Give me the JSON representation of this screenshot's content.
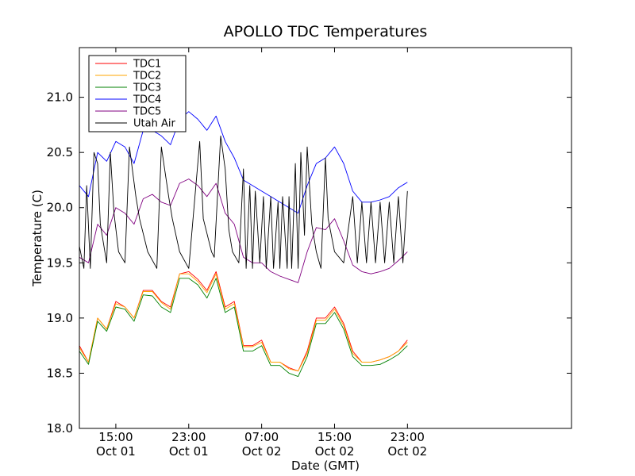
{
  "chart_data": {
    "type": "line",
    "title": "APOLLO TDC Temperatures",
    "xlabel": "Date (GMT)",
    "ylabel": "Temperature (C)",
    "ylim": [
      18.0,
      21.45
    ],
    "xlim": [
      0,
      54
    ],
    "x_unit": "hours since Oct 01 11:00 GMT",
    "yticks": [
      18.0,
      18.5,
      19.0,
      19.5,
      20.0,
      20.5,
      21.0
    ],
    "ytick_labels": [
      "18.0",
      "18.5",
      "19.0",
      "19.5",
      "20.0",
      "20.5",
      "21.0"
    ],
    "xticks": [
      {
        "x": 4,
        "time": "15:00",
        "date": "Oct 01"
      },
      {
        "x": 12,
        "time": "23:00",
        "date": "Oct 01"
      },
      {
        "x": 20,
        "time": "07:00",
        "date": "Oct 02"
      },
      {
        "x": 28,
        "time": "15:00",
        "date": "Oct 02"
      },
      {
        "x": 36,
        "time": "23:00",
        "date": "Oct 02"
      }
    ],
    "legend_position": "top-left",
    "series": [
      {
        "name": "TDC1",
        "color": "#ff0000",
        "x": [
          0,
          1,
          2,
          3,
          4,
          5,
          6,
          7,
          8,
          9,
          10,
          11,
          12,
          13,
          14,
          15,
          16,
          17,
          18,
          19,
          20,
          21,
          22,
          23,
          24,
          25,
          26,
          27,
          28,
          29,
          30,
          31,
          32,
          33,
          34,
          35,
          36
        ],
        "y": [
          18.75,
          18.6,
          19.0,
          18.9,
          19.15,
          19.1,
          19.0,
          19.25,
          19.25,
          19.15,
          19.1,
          19.4,
          19.42,
          19.35,
          19.25,
          19.42,
          19.1,
          19.15,
          18.75,
          18.75,
          18.8,
          18.6,
          18.6,
          18.55,
          18.52,
          18.7,
          19.0,
          19.0,
          19.1,
          18.95,
          18.7,
          18.6,
          18.6,
          18.62,
          18.65,
          18.7,
          18.8
        ]
      },
      {
        "name": "TDC2",
        "color": "#ffa500",
        "x": [
          0,
          1,
          2,
          3,
          4,
          5,
          6,
          7,
          8,
          9,
          10,
          11,
          12,
          13,
          14,
          15,
          16,
          17,
          18,
          19,
          20,
          21,
          22,
          23,
          24,
          25,
          26,
          27,
          28,
          29,
          30,
          31,
          32,
          33,
          34,
          35,
          36
        ],
        "y": [
          18.73,
          18.6,
          19.0,
          18.9,
          19.13,
          19.1,
          19.0,
          19.24,
          19.24,
          19.14,
          19.08,
          19.4,
          19.4,
          19.33,
          19.23,
          19.4,
          19.08,
          19.13,
          18.74,
          18.74,
          18.78,
          18.6,
          18.6,
          18.54,
          18.52,
          18.68,
          18.98,
          18.98,
          19.08,
          18.93,
          18.68,
          18.6,
          18.6,
          18.62,
          18.65,
          18.7,
          18.78
        ]
      },
      {
        "name": "TDC3",
        "color": "#008000",
        "x": [
          0,
          1,
          2,
          3,
          4,
          5,
          6,
          7,
          8,
          9,
          10,
          11,
          12,
          13,
          14,
          15,
          16,
          17,
          18,
          19,
          20,
          21,
          22,
          23,
          24,
          25,
          26,
          27,
          28,
          29,
          30,
          31,
          32,
          33,
          34,
          35,
          36
        ],
        "y": [
          18.7,
          18.58,
          18.97,
          18.88,
          19.1,
          19.08,
          18.97,
          19.21,
          19.2,
          19.1,
          19.05,
          19.36,
          19.36,
          19.3,
          19.18,
          19.36,
          19.05,
          19.1,
          18.7,
          18.7,
          18.75,
          18.57,
          18.57,
          18.5,
          18.47,
          18.65,
          18.95,
          18.95,
          19.05,
          18.9,
          18.65,
          18.57,
          18.57,
          18.58,
          18.62,
          18.67,
          18.75
        ]
      },
      {
        "name": "TDC4",
        "color": "#0000ff",
        "x": [
          0,
          1,
          2,
          3,
          4,
          5,
          6,
          7,
          8,
          9,
          10,
          11,
          12,
          13,
          14,
          15,
          16,
          17,
          18,
          19,
          20,
          21,
          22,
          23,
          24,
          25,
          26,
          27,
          28,
          29,
          30,
          31,
          32,
          33,
          34,
          35,
          36
        ],
        "y": [
          20.2,
          20.1,
          20.5,
          20.42,
          20.6,
          20.55,
          20.4,
          20.7,
          20.7,
          20.65,
          20.57,
          20.8,
          20.87,
          20.8,
          20.7,
          20.83,
          20.6,
          20.45,
          20.25,
          20.2,
          20.15,
          20.1,
          20.05,
          20.0,
          19.95,
          20.2,
          20.4,
          20.45,
          20.55,
          20.4,
          20.15,
          20.05,
          20.05,
          20.07,
          20.1,
          20.18,
          20.23
        ]
      },
      {
        "name": "TDC5",
        "color": "#800080",
        "x": [
          0,
          1,
          2,
          3,
          4,
          5,
          6,
          7,
          8,
          9,
          10,
          11,
          12,
          13,
          14,
          15,
          16,
          17,
          18,
          19,
          20,
          21,
          22,
          23,
          24,
          25,
          26,
          27,
          28,
          29,
          30,
          31,
          32,
          33,
          34,
          35,
          36
        ],
        "y": [
          19.55,
          19.5,
          19.85,
          19.75,
          20.0,
          19.95,
          19.85,
          20.08,
          20.12,
          20.05,
          20.02,
          20.22,
          20.26,
          20.2,
          20.1,
          20.22,
          19.95,
          19.85,
          19.55,
          19.5,
          19.5,
          19.42,
          19.38,
          19.35,
          19.32,
          19.6,
          19.82,
          19.8,
          19.9,
          19.7,
          19.48,
          19.42,
          19.4,
          19.42,
          19.45,
          19.52,
          19.6
        ]
      },
      {
        "name": "Utah Air",
        "color": "#000000",
        "x": [
          0,
          0.5,
          0.8,
          1.2,
          1.6,
          2.0,
          2.3,
          3.0,
          3.4,
          3.8,
          4.3,
          5.0,
          5.5,
          6.2,
          6.6,
          7.5,
          8.5,
          9.0,
          9.8,
          10.2,
          11.0,
          12.0,
          13.2,
          13.6,
          14.5,
          14.8,
          15.5,
          16.0,
          16.4,
          16.8,
          17.5,
          18.0,
          18.3,
          18.7,
          19.0,
          19.3,
          19.8,
          20.2,
          20.5,
          21.0,
          21.3,
          21.8,
          22.0,
          22.3,
          22.8,
          23.0,
          23.3,
          23.7,
          24.0,
          24.3,
          24.7,
          25.0,
          25.5,
          26.0,
          26.5,
          27.0,
          27.3,
          28.0,
          29.0,
          30.0,
          30.5,
          31.0,
          31.5,
          32.0,
          32.5,
          33.0,
          33.5,
          34.0,
          34.5,
          35.0,
          35.5,
          36.0
        ],
        "y": [
          19.65,
          19.45,
          20.2,
          19.45,
          20.5,
          20.4,
          19.85,
          19.5,
          20.5,
          19.95,
          19.6,
          19.5,
          20.55,
          20.1,
          19.9,
          19.6,
          19.45,
          20.55,
          20.1,
          19.9,
          19.6,
          19.45,
          20.6,
          19.9,
          19.6,
          19.55,
          20.65,
          20.35,
          19.8,
          19.6,
          19.5,
          20.35,
          19.45,
          20.2,
          19.45,
          20.15,
          19.5,
          20.1,
          19.45,
          20.1,
          19.45,
          20.05,
          19.45,
          20.1,
          19.45,
          20.1,
          19.45,
          20.4,
          19.45,
          20.5,
          19.75,
          20.55,
          19.85,
          19.6,
          19.45,
          20.45,
          19.9,
          19.6,
          19.5,
          20.1,
          19.5,
          20.05,
          19.5,
          20.05,
          19.5,
          20.05,
          19.5,
          20.05,
          19.5,
          20.1,
          19.5,
          20.15
        ]
      }
    ]
  }
}
